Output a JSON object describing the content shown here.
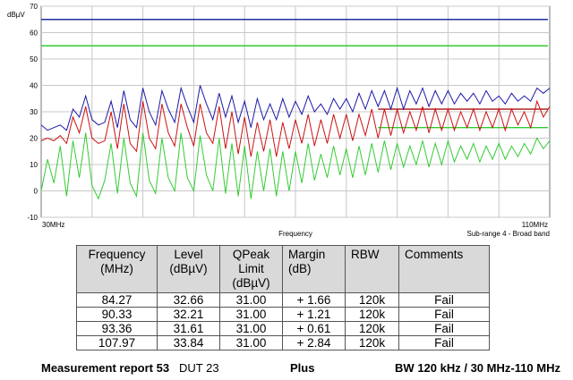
{
  "chart_data": {
    "type": "line",
    "ylabel": "dBµV",
    "xlabel": "Frequency",
    "xlim": [
      30,
      110
    ],
    "ylim": [
      -10,
      70
    ],
    "yticks": [
      -10,
      0,
      10,
      20,
      30,
      40,
      50,
      60,
      70
    ],
    "x_tick_labels": [
      "30MHz",
      "110MHz"
    ],
    "subrange_label": "Sub-range 4  -  Broad band",
    "grid": true,
    "limit_lines": [
      {
        "color": "#1f2fa0",
        "y": 65
      },
      {
        "color": "#33cc33",
        "y": 55
      },
      {
        "color": "#aa1111",
        "y": 31,
        "x_from": 83
      },
      {
        "color": "#33cc33",
        "y": 24,
        "x_from": 83
      }
    ],
    "series": [
      {
        "color": "#1a1aa8",
        "values": [
          [
            30,
            25
          ],
          [
            31,
            23
          ],
          [
            32,
            24
          ],
          [
            33,
            25
          ],
          [
            34,
            23
          ],
          [
            35,
            31
          ],
          [
            36,
            28
          ],
          [
            37,
            36
          ],
          [
            38,
            27
          ],
          [
            39,
            25
          ],
          [
            40,
            26
          ],
          [
            41,
            34
          ],
          [
            42,
            24
          ],
          [
            43,
            38
          ],
          [
            44,
            27
          ],
          [
            45,
            24
          ],
          [
            46,
            39
          ],
          [
            47,
            30
          ],
          [
            48,
            25
          ],
          [
            49,
            38
          ],
          [
            50,
            31
          ],
          [
            51,
            26
          ],
          [
            52,
            39
          ],
          [
            53,
            32
          ],
          [
            54,
            26
          ],
          [
            55,
            40
          ],
          [
            56,
            33
          ],
          [
            57,
            27
          ],
          [
            58,
            37
          ],
          [
            59,
            28
          ],
          [
            60,
            36
          ],
          [
            61,
            26
          ],
          [
            62,
            34
          ],
          [
            63,
            24
          ],
          [
            64,
            35
          ],
          [
            65,
            27
          ],
          [
            66,
            33
          ],
          [
            67,
            27
          ],
          [
            68,
            35
          ],
          [
            69,
            28
          ],
          [
            70,
            34
          ],
          [
            71,
            29
          ],
          [
            72,
            36
          ],
          [
            73,
            30
          ],
          [
            74,
            33
          ],
          [
            75,
            29
          ],
          [
            76,
            35
          ],
          [
            77,
            31
          ],
          [
            78,
            35
          ],
          [
            79,
            30
          ],
          [
            80,
            37
          ],
          [
            81,
            31
          ],
          [
            82,
            38
          ],
          [
            83,
            32
          ],
          [
            84,
            38
          ],
          [
            85,
            31
          ],
          [
            86,
            39
          ],
          [
            87,
            31
          ],
          [
            88,
            38
          ],
          [
            89,
            33
          ],
          [
            90,
            39
          ],
          [
            91,
            32
          ],
          [
            92,
            38
          ],
          [
            93,
            33
          ],
          [
            94,
            38
          ],
          [
            95,
            33
          ],
          [
            96,
            37
          ],
          [
            97,
            34
          ],
          [
            98,
            37
          ],
          [
            99,
            33
          ],
          [
            100,
            38
          ],
          [
            101,
            34
          ],
          [
            102,
            36
          ],
          [
            103,
            33
          ],
          [
            104,
            37
          ],
          [
            105,
            34
          ],
          [
            106,
            36
          ],
          [
            107,
            34
          ],
          [
            108,
            39
          ],
          [
            109,
            37
          ],
          [
            110,
            39
          ]
        ]
      },
      {
        "color": "#cc1111",
        "values": [
          [
            30,
            19
          ],
          [
            31,
            20
          ],
          [
            32,
            19
          ],
          [
            33,
            21
          ],
          [
            34,
            18
          ],
          [
            35,
            28
          ],
          [
            36,
            22
          ],
          [
            37,
            32
          ],
          [
            38,
            20
          ],
          [
            39,
            18
          ],
          [
            40,
            19
          ],
          [
            41,
            30
          ],
          [
            42,
            16
          ],
          [
            43,
            33
          ],
          [
            44,
            18
          ],
          [
            45,
            15
          ],
          [
            46,
            34
          ],
          [
            47,
            20
          ],
          [
            48,
            16
          ],
          [
            49,
            33
          ],
          [
            50,
            22
          ],
          [
            51,
            17
          ],
          [
            52,
            33
          ],
          [
            53,
            24
          ],
          [
            54,
            17
          ],
          [
            55,
            33
          ],
          [
            56,
            22
          ],
          [
            57,
            18
          ],
          [
            58,
            32
          ],
          [
            59,
            16
          ],
          [
            60,
            30
          ],
          [
            61,
            14
          ],
          [
            62,
            28
          ],
          [
            63,
            13
          ],
          [
            64,
            26
          ],
          [
            65,
            15
          ],
          [
            66,
            27
          ],
          [
            67,
            13
          ],
          [
            68,
            26
          ],
          [
            69,
            16
          ],
          [
            70,
            27
          ],
          [
            71,
            18
          ],
          [
            72,
            29
          ],
          [
            73,
            17
          ],
          [
            74,
            27
          ],
          [
            75,
            18
          ],
          [
            76,
            29
          ],
          [
            77,
            20
          ],
          [
            78,
            29
          ],
          [
            79,
            19
          ],
          [
            80,
            29
          ],
          [
            81,
            21
          ],
          [
            82,
            31
          ],
          [
            83,
            20
          ],
          [
            84,
            31
          ],
          [
            85,
            21
          ],
          [
            86,
            31
          ],
          [
            87,
            22
          ],
          [
            88,
            30
          ],
          [
            89,
            23
          ],
          [
            90,
            32
          ],
          [
            91,
            22
          ],
          [
            92,
            31
          ],
          [
            93,
            23
          ],
          [
            94,
            31
          ],
          [
            95,
            23
          ],
          [
            96,
            30
          ],
          [
            97,
            24
          ],
          [
            98,
            31
          ],
          [
            99,
            23
          ],
          [
            100,
            30
          ],
          [
            101,
            24
          ],
          [
            102,
            31
          ],
          [
            103,
            23
          ],
          [
            104,
            31
          ],
          [
            105,
            25
          ],
          [
            106,
            30
          ],
          [
            107,
            24
          ],
          [
            108,
            34
          ],
          [
            109,
            28
          ],
          [
            110,
            32
          ]
        ]
      },
      {
        "color": "#33cc33",
        "values": [
          [
            30,
            0
          ],
          [
            31,
            12
          ],
          [
            32,
            3
          ],
          [
            33,
            17
          ],
          [
            34,
            -2
          ],
          [
            35,
            19
          ],
          [
            36,
            5
          ],
          [
            37,
            22
          ],
          [
            38,
            2
          ],
          [
            39,
            -3
          ],
          [
            40,
            4
          ],
          [
            41,
            18
          ],
          [
            42,
            -1
          ],
          [
            43,
            20
          ],
          [
            44,
            3
          ],
          [
            45,
            -2
          ],
          [
            46,
            22
          ],
          [
            47,
            4
          ],
          [
            48,
            -1
          ],
          [
            49,
            20
          ],
          [
            50,
            5
          ],
          [
            51,
            0
          ],
          [
            52,
            22
          ],
          [
            53,
            5
          ],
          [
            54,
            0
          ],
          [
            55,
            21
          ],
          [
            56,
            6
          ],
          [
            57,
            0
          ],
          [
            58,
            20
          ],
          [
            59,
            -1
          ],
          [
            60,
            18
          ],
          [
            61,
            -2
          ],
          [
            62,
            17
          ],
          [
            63,
            -3
          ],
          [
            64,
            15
          ],
          [
            65,
            0
          ],
          [
            66,
            16
          ],
          [
            67,
            -2
          ],
          [
            68,
            15
          ],
          [
            69,
            0
          ],
          [
            70,
            15
          ],
          [
            71,
            3
          ],
          [
            72,
            18
          ],
          [
            73,
            4
          ],
          [
            74,
            14
          ],
          [
            75,
            5
          ],
          [
            76,
            17
          ],
          [
            77,
            6
          ],
          [
            78,
            16
          ],
          [
            79,
            5
          ],
          [
            80,
            17
          ],
          [
            81,
            6
          ],
          [
            82,
            18
          ],
          [
            83,
            7
          ],
          [
            84,
            19
          ],
          [
            85,
            8
          ],
          [
            86,
            18
          ],
          [
            87,
            9
          ],
          [
            88,
            17
          ],
          [
            89,
            10
          ],
          [
            90,
            19
          ],
          [
            91,
            9
          ],
          [
            92,
            18
          ],
          [
            93,
            10
          ],
          [
            94,
            19
          ],
          [
            95,
            11
          ],
          [
            96,
            17
          ],
          [
            97,
            12
          ],
          [
            98,
            18
          ],
          [
            99,
            11
          ],
          [
            100,
            17
          ],
          [
            101,
            12
          ],
          [
            102,
            18
          ],
          [
            103,
            12
          ],
          [
            104,
            17
          ],
          [
            105,
            13
          ],
          [
            106,
            18
          ],
          [
            107,
            14
          ],
          [
            108,
            20
          ],
          [
            109,
            16
          ],
          [
            110,
            19
          ]
        ]
      }
    ]
  },
  "table": {
    "headers": [
      [
        "Frequency",
        "(MHz)"
      ],
      [
        "Level",
        "(dBµV)"
      ],
      [
        "QPeak",
        "Limit",
        "(dBµV)"
      ],
      [
        "Margin",
        "(dB)"
      ],
      [
        "RBW"
      ],
      [
        "Comments"
      ]
    ],
    "rows": [
      [
        "84.27",
        "32.66",
        "31.00",
        "+ 1.66",
        "120k",
        "Fail"
      ],
      [
        "90.33",
        "32.21",
        "31.00",
        "+ 1.21",
        "120k",
        "Fail"
      ],
      [
        "93.36",
        "31.61",
        "31.00",
        "+ 0.61",
        "120k",
        "Fail"
      ],
      [
        "107.97",
        "33.84",
        "31.00",
        "+ 2.84",
        "120k",
        "Fail"
      ]
    ]
  },
  "footer": {
    "report": "Measurement report 53",
    "dut": "DUT 23",
    "plus": "Plus",
    "bw": "BW 120 kHz / 30 MHz-110 MHz"
  }
}
